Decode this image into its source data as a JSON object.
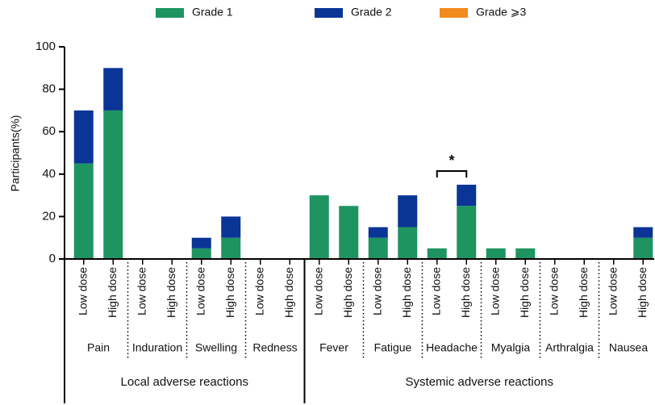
{
  "chart_data": {
    "type": "stacked_bar",
    "ylabel": "Participants(%)",
    "categories": [
      "Low dose",
      "High dose",
      "Low dose",
      "High dose",
      "Low dose",
      "High dose",
      "Low dose",
      "High dose",
      "Low dose",
      "High dose",
      "Low dose",
      "High dose",
      "Low dose",
      "High dose",
      "Low dose",
      "High dose",
      "Low dose",
      "High dose",
      "Low dose",
      "High dose"
    ],
    "supergroups": [
      {
        "name": "Local adverse reactions",
        "groups": [
          "Pain",
          "Induration",
          "Swelling",
          "Redness"
        ]
      },
      {
        "name": "Systemic adverse reactions",
        "groups": [
          "Fever",
          "Fatigue",
          "Headache",
          "Myalgia",
          "Arthralgia",
          "Nausea"
        ]
      }
    ],
    "series": [
      {
        "name": "Grade 1",
        "color": "#1e9461",
        "values": [
          45,
          70,
          0,
          0,
          5,
          10,
          0,
          0,
          30,
          25,
          10,
          15,
          5,
          25,
          5,
          5,
          0,
          0,
          0,
          10
        ]
      },
      {
        "name": "Grade 2",
        "color": "#0a3596",
        "values": [
          25,
          20,
          0,
          0,
          5,
          10,
          0,
          0,
          0,
          0,
          5,
          15,
          0,
          10,
          0,
          0,
          0,
          0,
          0,
          5
        ]
      },
      {
        "name": "Grade ⩾3",
        "color": "#f28a1e",
        "values": [
          0,
          0,
          0,
          0,
          0,
          0,
          0,
          0,
          0,
          0,
          0,
          0,
          0,
          0,
          0,
          0,
          0,
          0,
          0,
          0
        ]
      }
    ],
    "annotations": [
      {
        "text": "*"
      }
    ],
    "ylim": [
      0,
      100
    ],
    "yticks": [
      0,
      20,
      40,
      60,
      80,
      100
    ]
  }
}
